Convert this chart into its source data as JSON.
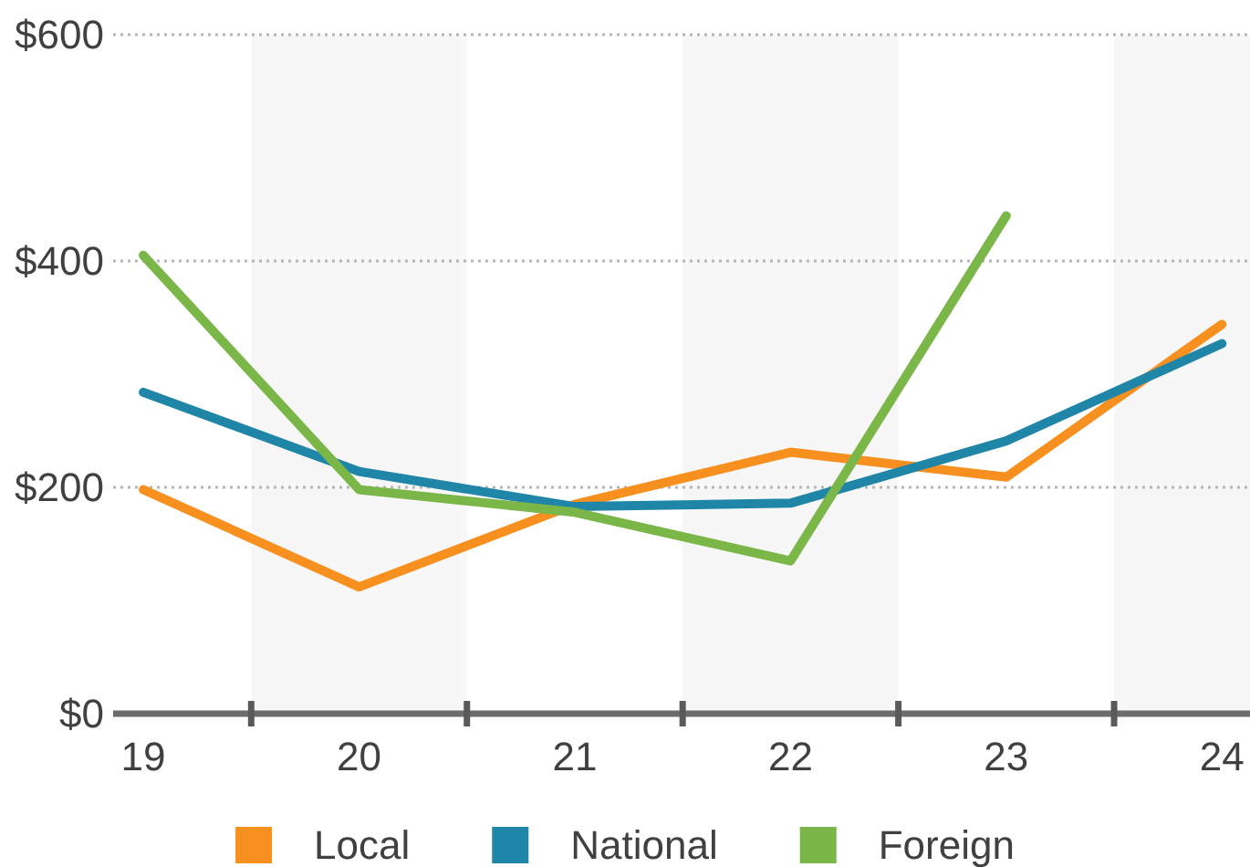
{
  "chart_data": {
    "type": "line",
    "x": [
      19,
      20,
      21,
      22,
      23,
      24
    ],
    "series": [
      {
        "name": "Local",
        "color": "#f7901e",
        "values": [
          198,
          112,
          185,
          231,
          209,
          344
        ]
      },
      {
        "name": "National",
        "color": "#1f86a8",
        "values": [
          284,
          214,
          183,
          186,
          241,
          327
        ]
      },
      {
        "name": "Foreign",
        "color": "#7ab648",
        "values": [
          405,
          198,
          178,
          135,
          440,
          null
        ]
      }
    ],
    "xlim": [
      18.86,
      24.13
    ],
    "xticks": [
      19,
      {
        "value": 19.5,
        "label": null
      },
      20,
      {
        "value": 20.5,
        "label": null
      },
      21,
      {
        "value": 21.5,
        "label": null
      },
      22,
      {
        "value": 22.5,
        "label": null
      },
      23,
      {
        "value": 23.5,
        "label": null
      },
      24
    ],
    "ylim": [
      0,
      600
    ],
    "yticks": [
      {
        "value": 0,
        "label": "$0"
      },
      {
        "value": 200,
        "label": "$200"
      },
      {
        "value": 400,
        "label": "$400"
      },
      {
        "value": 600,
        "label": "$600"
      }
    ],
    "grid": "y",
    "legend": "bottom",
    "bands": [
      {
        "axis": "x",
        "from": 19.5,
        "to": 20.5,
        "color": "#f7f7f7"
      },
      {
        "axis": "x",
        "from": 21.5,
        "to": 22.5,
        "color": "#f7f7f7"
      },
      {
        "axis": "x",
        "from": 23.5,
        "to": 24.13,
        "color": "#f7f7f7"
      }
    ]
  }
}
